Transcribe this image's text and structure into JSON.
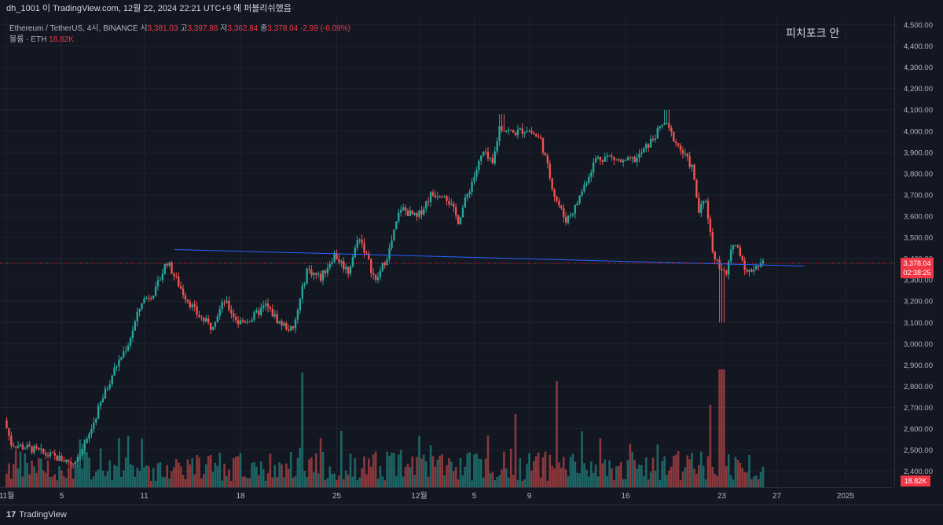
{
  "header": {
    "snapshot_text": "dh_1001 이 TradingView.com, 12월 22, 2024 22:21 UTC+9 에 퍼블리쉬했음"
  },
  "legend": {
    "symbol": "Ethereum / TetherUS, 4시, BINANCE",
    "open_label": "시",
    "open": "3,381.03",
    "high_label": "고",
    "high": "3,397.88",
    "low_label": "저",
    "low": "3,362.84",
    "close_label": "종",
    "close": "3,378.04",
    "change": "-2.99 (-0.09%)",
    "volume_label": "볼륨 · ETH",
    "volume": "18.82K"
  },
  "annotation": "피치포크 안",
  "price_badge": {
    "price": "3,378.04",
    "countdown": "02:38:25"
  },
  "volume_badge": "18.82K",
  "footer": {
    "logo_mark": "17",
    "brand": "TradingView"
  },
  "colors": {
    "up": "#26a69a",
    "down": "#ef5350",
    "bg": "#131722",
    "grid": "#1e222d",
    "trendline": "#2962ff",
    "last_price": "#f23645"
  },
  "chart_data": {
    "type": "candlestick",
    "y_ticks": [
      "2,400.00",
      "2,500.00",
      "2,600.00",
      "2,700.00",
      "2,800.00",
      "2,900.00",
      "3,000.00",
      "3,100.00",
      "3,200.00",
      "3,300.00",
      "3,400.00",
      "3,500.00",
      "3,600.00",
      "3,700.00",
      "3,800.00",
      "3,900.00",
      "4,000.00",
      "4,100.00",
      "4,200.00",
      "4,300.00",
      "4,400.00",
      "4,500.00"
    ],
    "ylim": [
      2325,
      4535
    ],
    "x_ticks": [
      {
        "label": "11월",
        "day": 0
      },
      {
        "label": "5",
        "day": 4
      },
      {
        "label": "11",
        "day": 10
      },
      {
        "label": "18",
        "day": 17
      },
      {
        "label": "25",
        "day": 24
      },
      {
        "label": "12월",
        "day": 30
      },
      {
        "label": "5",
        "day": 34
      },
      {
        "label": "9",
        "day": 38
      },
      {
        "label": "16",
        "day": 45
      },
      {
        "label": "23",
        "day": 52
      },
      {
        "label": "27",
        "day": 56
      },
      {
        "label": "2025",
        "day": 61
      }
    ],
    "last_price": 3378.04,
    "trendline": [
      {
        "day": 12.2,
        "price": 3443
      },
      {
        "day": 58,
        "price": 3365
      }
    ],
    "path_points": [
      {
        "day": 0,
        "price": 2640
      },
      {
        "day": 0.5,
        "price": 2530
      },
      {
        "day": 2,
        "price": 2505
      },
      {
        "day": 3,
        "price": 2480
      },
      {
        "day": 4,
        "price": 2460
      },
      {
        "day": 5,
        "price": 2440
      },
      {
        "day": 6,
        "price": 2540
      },
      {
        "day": 7,
        "price": 2720
      },
      {
        "day": 8,
        "price": 2880
      },
      {
        "day": 9,
        "price": 3000
      },
      {
        "day": 10,
        "price": 3200
      },
      {
        "day": 11,
        "price": 3250
      },
      {
        "day": 11.8,
        "price": 3390
      },
      {
        "day": 12.5,
        "price": 3300
      },
      {
        "day": 13,
        "price": 3240
      },
      {
        "day": 14,
        "price": 3140
      },
      {
        "day": 15,
        "price": 3080
      },
      {
        "day": 16,
        "price": 3200
      },
      {
        "day": 17,
        "price": 3100
      },
      {
        "day": 18,
        "price": 3120
      },
      {
        "day": 19,
        "price": 3180
      },
      {
        "day": 20,
        "price": 3100
      },
      {
        "day": 21,
        "price": 3060
      },
      {
        "day": 22,
        "price": 3350
      },
      {
        "day": 23,
        "price": 3310
      },
      {
        "day": 24,
        "price": 3420
      },
      {
        "day": 25,
        "price": 3340
      },
      {
        "day": 25.8,
        "price": 3510
      },
      {
        "day": 27,
        "price": 3290
      },
      {
        "day": 28,
        "price": 3440
      },
      {
        "day": 28.8,
        "price": 3640
      },
      {
        "day": 30,
        "price": 3590
      },
      {
        "day": 31,
        "price": 3700
      },
      {
        "day": 32,
        "price": 3710
      },
      {
        "day": 33,
        "price": 3580
      },
      {
        "day": 34,
        "price": 3760
      },
      {
        "day": 34.8,
        "price": 3900
      },
      {
        "day": 35.5,
        "price": 3840
      },
      {
        "day": 36,
        "price": 4020
      },
      {
        "day": 37,
        "price": 3990
      },
      {
        "day": 38,
        "price": 4010
      },
      {
        "day": 39,
        "price": 3960
      },
      {
        "day": 40,
        "price": 3700
      },
      {
        "day": 40.8,
        "price": 3580
      },
      {
        "day": 41.5,
        "price": 3640
      },
      {
        "day": 42,
        "price": 3720
      },
      {
        "day": 43,
        "price": 3870
      },
      {
        "day": 44,
        "price": 3880
      },
      {
        "day": 45,
        "price": 3850
      },
      {
        "day": 46,
        "price": 3870
      },
      {
        "day": 47,
        "price": 3950
      },
      {
        "day": 48,
        "price": 4040
      },
      {
        "day": 49,
        "price": 3930
      },
      {
        "day": 50,
        "price": 3830
      },
      {
        "day": 50.5,
        "price": 3620
      },
      {
        "day": 51,
        "price": 3680
      },
      {
        "day": 51.5,
        "price": 3440
      },
      {
        "day": 52,
        "price": 3360
      },
      {
        "day": 52.5,
        "price": 3320
      },
      {
        "day": 53,
        "price": 3480
      },
      {
        "day": 53.5,
        "price": 3430
      },
      {
        "day": 54,
        "price": 3330
      },
      {
        "day": 54.5,
        "price": 3360
      },
      {
        "day": 55,
        "price": 3378
      }
    ]
  }
}
